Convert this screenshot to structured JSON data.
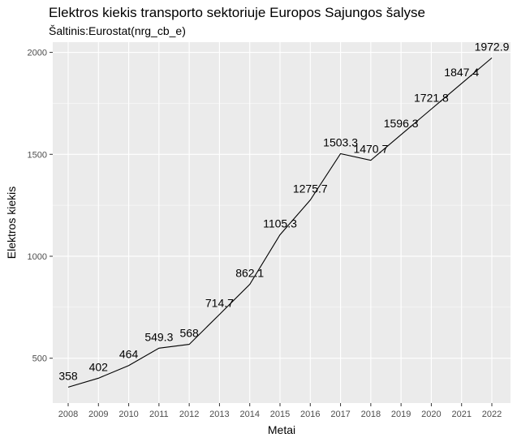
{
  "chart_data": {
    "type": "line",
    "title": "Elektros kiekis transporto sektoriuje Europos Sajungos šalyse",
    "subtitle": "Šaltinis:Eurostat(nrg_cb_e)",
    "xlabel": "Metai",
    "ylabel": "Elektros kiekis",
    "x": [
      "2008",
      "2009",
      "2010",
      "2011",
      "2012",
      "2013",
      "2014",
      "2015",
      "2016",
      "2017",
      "2018",
      "2019",
      "2020",
      "2021",
      "2022"
    ],
    "values": [
      358,
      402,
      464,
      549.3,
      568,
      714.7,
      862.1,
      1105.3,
      1275.7,
      1503.3,
      1470.7,
      1596.3,
      1721.8,
      1847.4,
      1972.9
    ],
    "labels": [
      "358",
      "402",
      "464",
      "549.3",
      "568",
      "714.7",
      "862.1",
      "1105.3",
      "1275.7",
      "1503.3",
      "1470.7",
      "1596.3",
      "1721.8",
      "1847.4",
      "1972.9"
    ],
    "yticks": [
      500,
      1000,
      1500,
      2000
    ],
    "ylim": [
      280,
      2050
    ],
    "grid": true,
    "colors": {
      "panel": "#ebebeb",
      "grid": "#ffffff",
      "line": "#000000"
    }
  }
}
